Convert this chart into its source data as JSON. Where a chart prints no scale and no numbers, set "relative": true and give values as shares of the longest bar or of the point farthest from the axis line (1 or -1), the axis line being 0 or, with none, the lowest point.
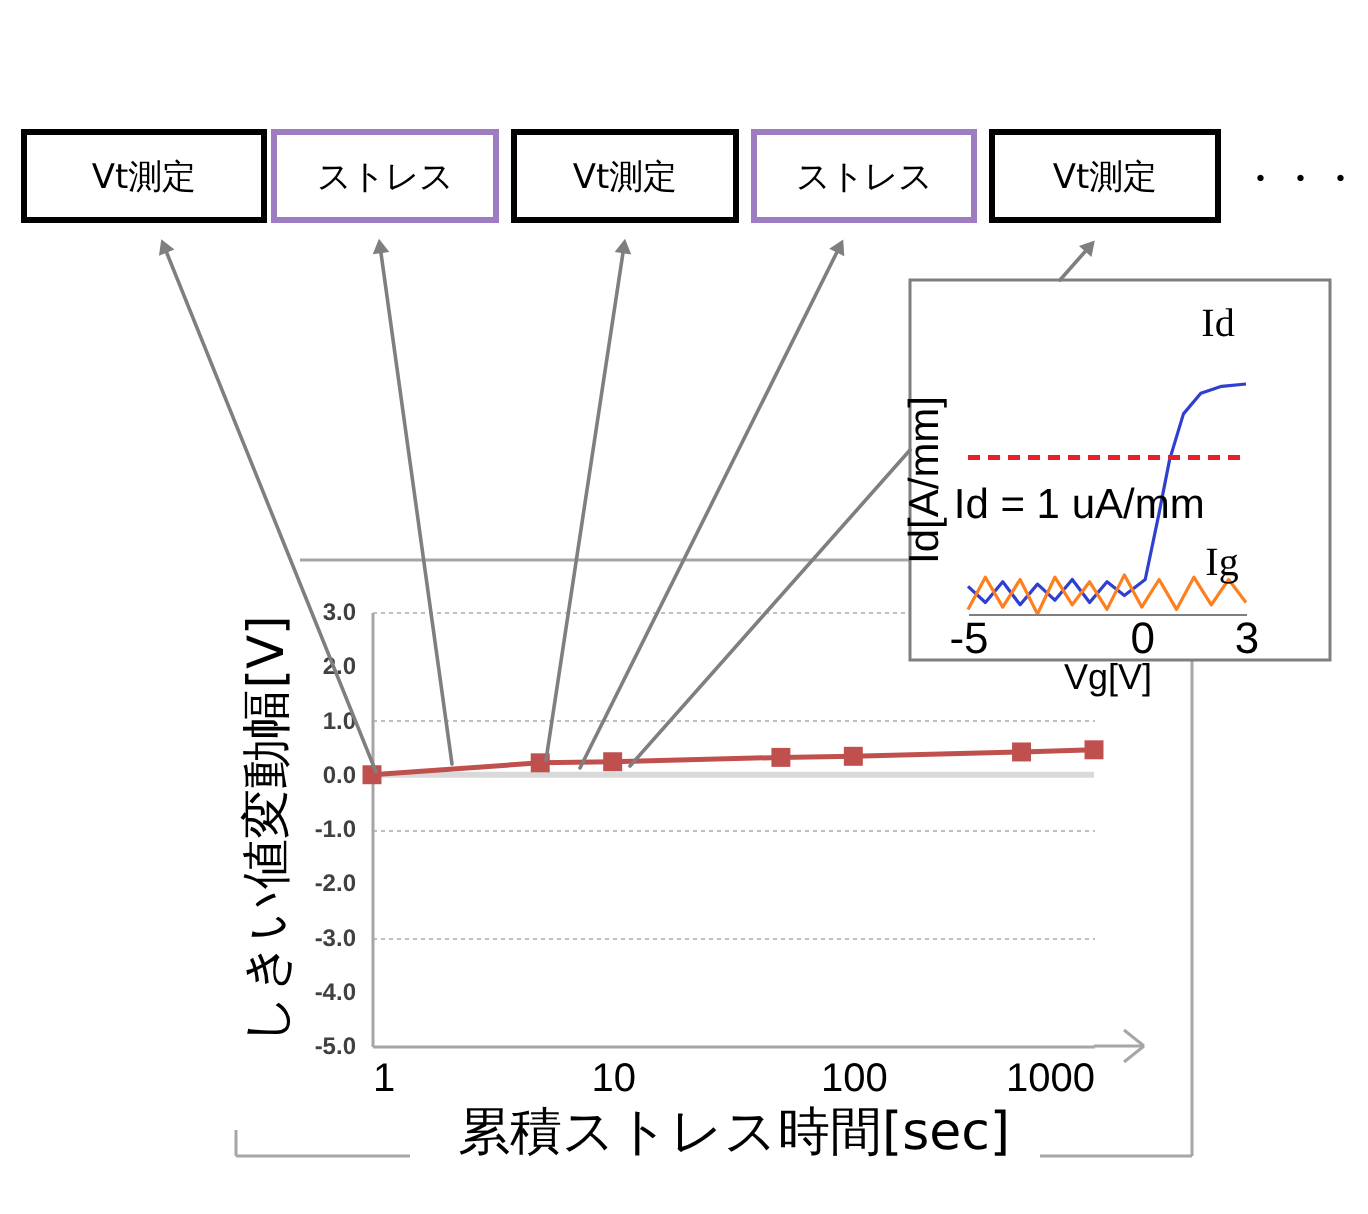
{
  "chart_data": [
    {
      "type": "line",
      "xlabel": "累積ストレス時間[sec]",
      "ylabel": "しきい値変動幅[V]",
      "log": "x",
      "x": [
        1,
        5,
        10,
        50,
        100,
        500,
        1000
      ],
      "series": [
        {
          "color": "#c0504d",
          "values": [
            0,
            0.22,
            0.24,
            0.32,
            0.34,
            0.42,
            0.46
          ]
        }
      ],
      "xlim": [
        1,
        1000
      ],
      "xticks": [
        1,
        10,
        100,
        1000
      ],
      "ylim": [
        -5,
        3
      ],
      "yticks": [
        {
          "value": 3,
          "label": "3.0"
        },
        {
          "value": 2,
          "label": "2.0"
        },
        {
          "value": 1,
          "label": "1.0"
        },
        {
          "value": 0,
          "label": "0.0"
        },
        {
          "value": -1,
          "label": "-1.0"
        },
        {
          "value": -2,
          "label": "-2.0"
        },
        {
          "value": -3,
          "label": "-3.0"
        },
        {
          "value": -4,
          "label": "-4.0"
        },
        {
          "value": -5,
          "label": "-5.0"
        }
      ],
      "grid": "y",
      "marker": "square",
      "line_style": "solid",
      "ref_lines": [
        {
          "axis": "y",
          "value": 0,
          "color": "#d9d9d9"
        }
      ],
      "annotations": [
        "Vt測定",
        "ストレス",
        "Vt測定",
        "ストレス",
        "Vt測定",
        "・・・"
      ]
    },
    {
      "type": "line",
      "xlabel": "Vg[V]",
      "ylabel": "Id[A/mm]",
      "xlim": [
        -5,
        3
      ],
      "xticks": [
        -5,
        0,
        3
      ],
      "relative": true,
      "series": [
        {
          "name": "Id",
          "color": "#2f3fd0",
          "x": [
            -5,
            -4.5,
            -4,
            -3.5,
            -3,
            -2.5,
            -2,
            -1.5,
            -1,
            -0.5,
            0.1,
            0.5,
            0.8,
            1.2,
            1.7,
            2.3,
            3
          ],
          "values": [
            0.12,
            0.05,
            0.14,
            0.04,
            0.13,
            0.06,
            0.15,
            0.05,
            0.14,
            0.08,
            0.15,
            0.44,
            0.67,
            0.87,
            0.96,
            0.99,
            1.0
          ]
        },
        {
          "name": "Ig",
          "color": "#ff7f1f",
          "x": [
            -5,
            -4.5,
            -4,
            -3.5,
            -3,
            -2.5,
            -2,
            -1.5,
            -1,
            -0.5,
            0,
            0.5,
            1,
            1.5,
            2,
            2.5,
            3
          ],
          "values": [
            0.02,
            0.16,
            0.03,
            0.15,
            0.0,
            0.16,
            0.04,
            0.14,
            0.02,
            0.17,
            0.03,
            0.15,
            0.02,
            0.16,
            0.04,
            0.15,
            0.05
          ]
        }
      ],
      "ref_lines": [
        {
          "axis": "y",
          "value": 0.68,
          "label": "Id = 1 uA/mm",
          "color": "#e8202a",
          "line_style": "dashed"
        }
      ]
    }
  ]
}
